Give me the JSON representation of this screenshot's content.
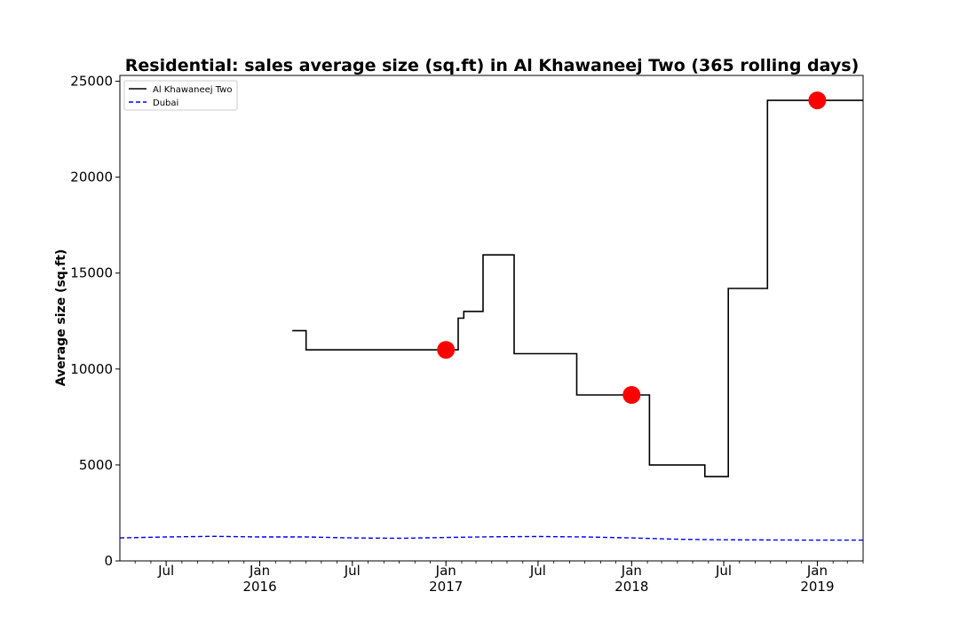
{
  "chart_data": {
    "type": "line",
    "title": "Residential: sales average size (sq.ft) in Al Khawaneej Two (365 rolling days)",
    "xlabel": "",
    "ylabel": "Average size (sq.ft)",
    "xlim": [
      "2015-04-01",
      "2019-04-01"
    ],
    "ylim": [
      0,
      25300
    ],
    "yticks": [
      0,
      5000,
      10000,
      15000,
      20000,
      25000
    ],
    "xticks": [
      {
        "date": "2015-07-01",
        "label": "Jul",
        "year": ""
      },
      {
        "date": "2016-01-01",
        "label": "Jan",
        "year": "2016"
      },
      {
        "date": "2016-07-01",
        "label": "Jul",
        "year": ""
      },
      {
        "date": "2017-01-01",
        "label": "Jan",
        "year": "2017"
      },
      {
        "date": "2017-07-01",
        "label": "Jul",
        "year": ""
      },
      {
        "date": "2018-01-01",
        "label": "Jan",
        "year": "2018"
      },
      {
        "date": "2018-07-01",
        "label": "Jul",
        "year": ""
      },
      {
        "date": "2019-01-01",
        "label": "Jan",
        "year": "2019"
      }
    ],
    "legend": "top-left",
    "grid": false,
    "series": [
      {
        "name": "Al Khawaneej Two",
        "color": "#000000",
        "style": "solid",
        "step": true,
        "points": [
          [
            "2016-03-05",
            12000
          ],
          [
            "2016-04-01",
            11000
          ],
          [
            "2017-01-25",
            12650
          ],
          [
            "2017-02-05",
            13000
          ],
          [
            "2017-03-15",
            15950
          ],
          [
            "2017-05-15",
            10800
          ],
          [
            "2017-09-15",
            8650
          ],
          [
            "2018-02-05",
            5000
          ],
          [
            "2018-05-25",
            4400
          ],
          [
            "2018-07-10",
            14200
          ],
          [
            "2018-09-25",
            24000
          ],
          [
            "2019-04-01",
            24000
          ]
        ]
      },
      {
        "name": "Dubai",
        "color": "#0000ff",
        "style": "dashed",
        "step": false,
        "points": [
          [
            "2015-04-01",
            1200
          ],
          [
            "2015-07-01",
            1250
          ],
          [
            "2015-10-01",
            1280
          ],
          [
            "2016-01-01",
            1250
          ],
          [
            "2016-04-01",
            1250
          ],
          [
            "2016-07-01",
            1200
          ],
          [
            "2016-10-01",
            1180
          ],
          [
            "2017-01-01",
            1220
          ],
          [
            "2017-04-01",
            1260
          ],
          [
            "2017-07-01",
            1270
          ],
          [
            "2017-10-01",
            1250
          ],
          [
            "2018-01-01",
            1200
          ],
          [
            "2018-04-01",
            1130
          ],
          [
            "2018-07-01",
            1100
          ],
          [
            "2018-10-01",
            1090
          ],
          [
            "2019-01-01",
            1080
          ],
          [
            "2019-04-01",
            1080
          ]
        ]
      }
    ],
    "markers": {
      "color": "#ff0000",
      "points": [
        [
          "2017-01-01",
          11000
        ],
        [
          "2018-01-01",
          8650
        ],
        [
          "2019-01-01",
          24000
        ]
      ]
    }
  }
}
